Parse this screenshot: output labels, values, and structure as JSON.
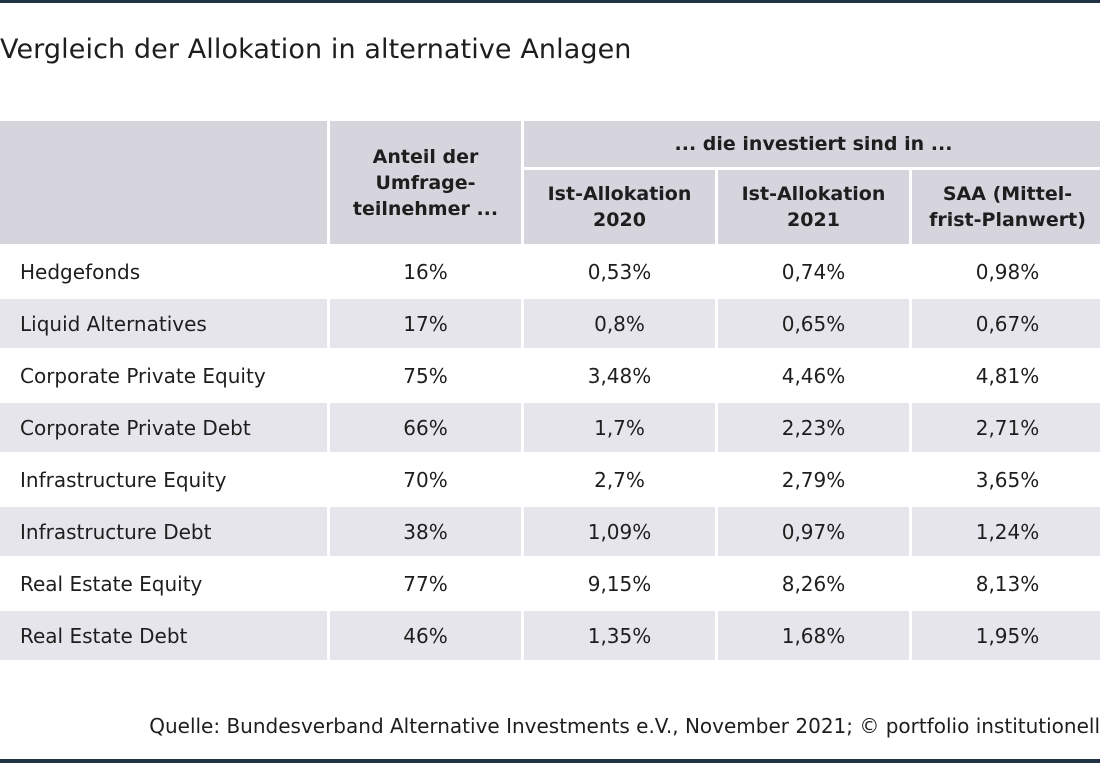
{
  "title": "Vergleich der Allokation in alternative Anlagen",
  "footer": "Quelle: Bundesverband Alternative Investments e.V., November 2021; © portfolio institutionell",
  "colors": {
    "header_bg": "#d6d5de",
    "stripe_bg": "#e6e5eb",
    "rule": "#1f3246"
  },
  "chart_data": {
    "type": "table",
    "title": "Vergleich der Allokation in alternative Anlagen",
    "group_header": "... die investiert sind in ...",
    "columns": [
      "",
      "Anteil der Umfrage-teilnehmer ...",
      "Ist-Allokation 2020",
      "Ist-Allokation 2021",
      "SAA (Mittel-frist-Planwert)"
    ],
    "column_lines": [
      [
        "Anteil der",
        "Umfrage-",
        "teilnehmer ..."
      ],
      [
        "Ist-Allokation",
        "2020"
      ],
      [
        "Ist-Allokation",
        "2021"
      ],
      [
        "SAA (Mittel-",
        "frist-Planwert)"
      ]
    ],
    "rows": [
      {
        "label": "Hedgefonds",
        "values": [
          "16%",
          "0,53%",
          "0,74%",
          "0,98%"
        ]
      },
      {
        "label": "Liquid Alternatives",
        "values": [
          "17%",
          "0,8%",
          "0,65%",
          "0,67%"
        ]
      },
      {
        "label": "Corporate Private Equity",
        "values": [
          "75%",
          "3,48%",
          "4,46%",
          "4,81%"
        ]
      },
      {
        "label": "Corporate Private Debt",
        "values": [
          "66%",
          "1,7%",
          "2,23%",
          "2,71%"
        ]
      },
      {
        "label": "Infrastructure Equity",
        "values": [
          "70%",
          "2,7%",
          "2,79%",
          "3,65%"
        ]
      },
      {
        "label": "Infrastructure Debt",
        "values": [
          "38%",
          "1,09%",
          "0,97%",
          "1,24%"
        ]
      },
      {
        "label": "Real Estate Equity",
        "values": [
          "77%",
          "9,15%",
          "8,26%",
          "8,13%"
        ]
      },
      {
        "label": "Real Estate Debt",
        "values": [
          "46%",
          "1,35%",
          "1,68%",
          "1,95%"
        ]
      }
    ]
  }
}
